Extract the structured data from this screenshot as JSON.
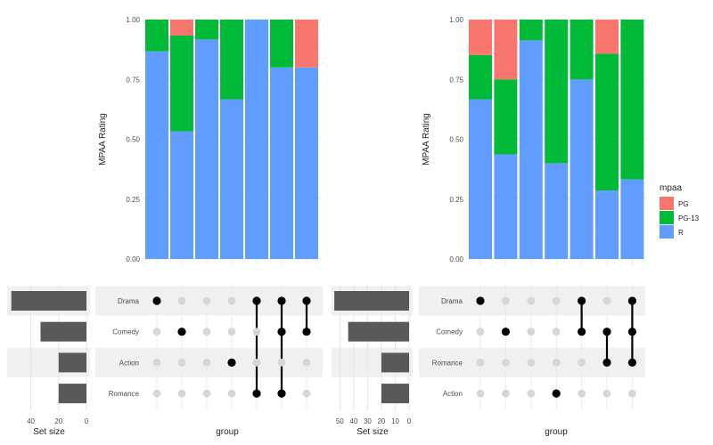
{
  "chart_data": [
    {
      "type": "bar",
      "subtype": "stacked-proportion",
      "title": "",
      "ylabel": "MPAA Rating",
      "xlabel": "group",
      "ylim": [
        0,
        1
      ],
      "yticks": [
        "0.00",
        "0.25",
        "0.50",
        "0.75",
        "1.00"
      ],
      "grid": true,
      "stack_order": [
        "R",
        "PG-13",
        "PG"
      ],
      "columns": [
        {
          "R": 0.867,
          "PG-13": 0.133,
          "PG": 0.0
        },
        {
          "R": 0.533,
          "PG-13": 0.4,
          "PG": 0.067
        },
        {
          "R": 0.917,
          "PG-13": 0.083,
          "PG": 0.0
        },
        {
          "R": 0.667,
          "PG-13": 0.333,
          "PG": 0.0
        },
        {
          "R": 1.0,
          "PG-13": 0.0,
          "PG": 0.0
        },
        {
          "R": 0.8,
          "PG-13": 0.2,
          "PG": 0.0
        },
        {
          "R": 0.8,
          "PG-13": 0.0,
          "PG": 0.2
        }
      ],
      "sets": [
        "Drama",
        "Comedy",
        "Action",
        "Romance"
      ],
      "intersections": [
        [
          "Drama"
        ],
        [
          "Comedy"
        ],
        [],
        [
          "Action"
        ],
        [
          "Drama",
          "Romance"
        ],
        [
          "Drama",
          "Comedy",
          "Romance"
        ],
        [
          "Drama",
          "Comedy"
        ]
      ],
      "set_size": {
        "label": "Set size",
        "values": [
          54,
          33,
          20,
          20
        ],
        "xlim": [
          0,
          57
        ],
        "ticks": [
          40,
          20,
          0
        ]
      }
    },
    {
      "type": "bar",
      "subtype": "stacked-proportion",
      "title": "",
      "ylabel": "MPAA Rating",
      "xlabel": "group",
      "ylim": [
        0,
        1
      ],
      "yticks": [
        "0.00",
        "0.25",
        "0.50",
        "0.75",
        "1.00"
      ],
      "grid": true,
      "stack_order": [
        "R",
        "PG-13",
        "PG"
      ],
      "columns": [
        {
          "R": 0.667,
          "PG-13": 0.185,
          "PG": 0.148
        },
        {
          "R": 0.437,
          "PG-13": 0.313,
          "PG": 0.25
        },
        {
          "R": 0.913,
          "PG-13": 0.087,
          "PG": 0.0
        },
        {
          "R": 0.4,
          "PG-13": 0.6,
          "PG": 0.0
        },
        {
          "R": 0.75,
          "PG-13": 0.25,
          "PG": 0.0
        },
        {
          "R": 0.286,
          "PG-13": 0.571,
          "PG": 0.143
        },
        {
          "R": 0.333,
          "PG-13": 0.667,
          "PG": 0.0
        }
      ],
      "sets": [
        "Drama",
        "Comedy",
        "Romance",
        "Action"
      ],
      "intersections": [
        [
          "Drama"
        ],
        [
          "Comedy"
        ],
        [],
        [
          "Action"
        ],
        [
          "Drama",
          "Comedy"
        ],
        [
          "Comedy",
          "Romance"
        ],
        [
          "Drama",
          "Comedy",
          "Romance"
        ]
      ],
      "set_size": {
        "label": "Set size",
        "values": [
          54,
          44,
          20,
          20
        ],
        "xlim": [
          0,
          56
        ],
        "ticks": [
          50,
          40,
          30,
          20,
          10,
          0
        ]
      }
    }
  ],
  "legend": {
    "title": "mpaa",
    "entries": [
      {
        "label": "PG",
        "color": "#F8766D"
      },
      {
        "label": "PG-13",
        "color": "#00BA38"
      },
      {
        "label": "R",
        "color": "#619CFF"
      }
    ]
  }
}
